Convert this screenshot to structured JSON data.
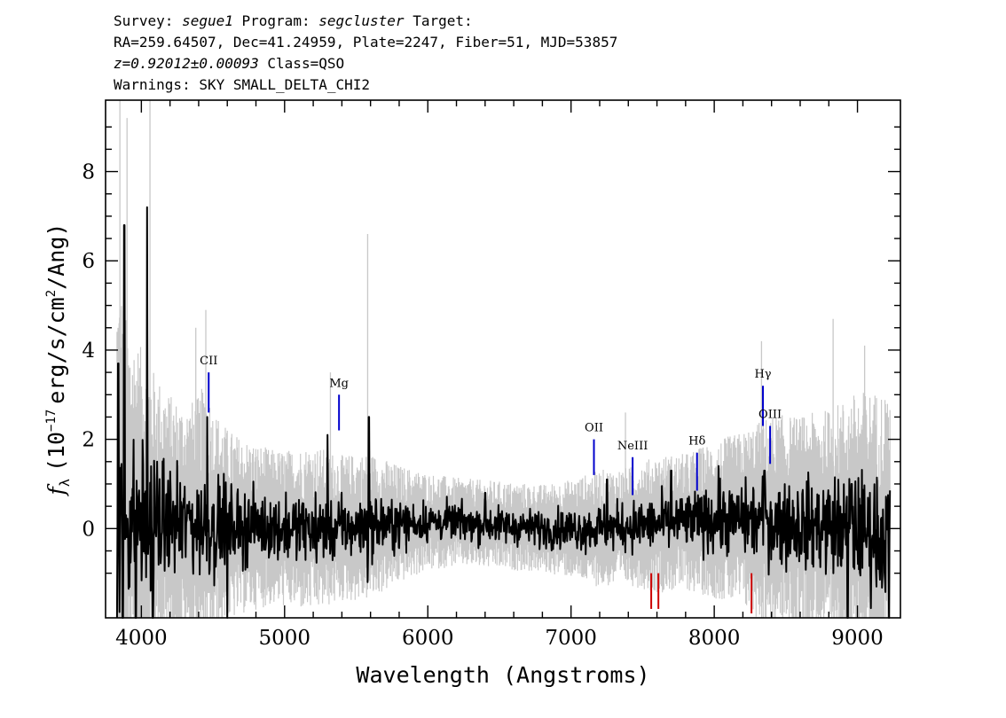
{
  "header": {
    "line1": {
      "survey_label": "Survey:",
      "survey": "segue1",
      "program_label": "Program:",
      "program": "segcluster",
      "target_label": "Target:"
    },
    "line2": "RA=259.64507, Dec=41.24959, Plate=2247, Fiber=51, MJD=53857",
    "line3": {
      "redshift": "z=0.92012±0.00093",
      "class": "Class=QSO"
    },
    "line4": "Warnings: SKY SMALL_DELTA_CHI2"
  },
  "chart_data": {
    "type": "line",
    "xlabel": "Wavelength (Angstroms)",
    "ylabel": {
      "f": "f",
      "sub": "λ",
      "pre": "(10",
      "exp1": "−17",
      "mid": "erg/s/cm",
      "exp2": "2",
      "post": "/Ang)"
    },
    "xlim": [
      3750,
      9300
    ],
    "ylim": [
      -2,
      9.6
    ],
    "x_ticks": [
      4000,
      5000,
      6000,
      7000,
      8000,
      9000
    ],
    "y_ticks": [
      0,
      2,
      4,
      6,
      8
    ],
    "grid": false,
    "legend": "none",
    "series": [
      {
        "role": "error",
        "color": "#c8c8c8",
        "x": [
          3850,
          3900,
          4000,
          4100,
          4200,
          4300,
          4400,
          4450,
          4500,
          4600,
          4700,
          4800,
          4900,
          5000,
          5200,
          5400,
          5600,
          5800,
          6000,
          6200,
          6400,
          6600,
          6800,
          7000,
          7200,
          7400,
          7600,
          7800,
          8000,
          8200,
          8400,
          8600,
          8800,
          9000,
          9200
        ],
        "values": [
          5.0,
          4.0,
          3.5,
          3.0,
          2.6,
          2.4,
          2.6,
          3.0,
          2.4,
          2.0,
          1.8,
          1.7,
          1.6,
          1.6,
          1.7,
          1.5,
          1.5,
          1.2,
          1.0,
          0.9,
          0.9,
          0.9,
          0.9,
          1.0,
          1.2,
          1.2,
          1.4,
          1.4,
          1.6,
          1.8,
          2.2,
          2.2,
          2.4,
          2.8,
          3.0
        ],
        "spikes": [
          {
            "x": 3850,
            "y": 9.6
          },
          {
            "x": 3900,
            "y": 9.2
          },
          {
            "x": 4060,
            "y": 9.6
          },
          {
            "x": 4380,
            "y": 4.5
          },
          {
            "x": 4450,
            "y": 4.9
          },
          {
            "x": 5320,
            "y": 3.5
          },
          {
            "x": 5580,
            "y": 6.6
          },
          {
            "x": 7380,
            "y": 2.6
          },
          {
            "x": 8330,
            "y": 4.2
          },
          {
            "x": 8830,
            "y": 4.7
          },
          {
            "x": 9050,
            "y": 4.1
          }
        ]
      },
      {
        "role": "flux",
        "color": "#000000",
        "x": [
          3800,
          4000,
          4200,
          4400,
          4600,
          4800,
          5000,
          5200,
          5400,
          5600,
          5800,
          6000,
          6200,
          6400,
          6600,
          6800,
          7000,
          7200,
          7400,
          7600,
          7800,
          8000,
          8200,
          8400,
          8600,
          8800,
          9000,
          9200
        ],
        "values": [
          0.2,
          0.2,
          0.15,
          0.1,
          0.05,
          0.05,
          0.0,
          0.0,
          0.0,
          0.05,
          0.1,
          0.15,
          0.15,
          0.1,
          0.05,
          0.0,
          0.0,
          0.0,
          0.05,
          0.1,
          0.15,
          0.2,
          0.2,
          0.15,
          0.1,
          0.05,
          0.0,
          -0.2
        ],
        "peaks": [
          {
            "x": 3840,
            "y": 3.7
          },
          {
            "x": 3880,
            "y": 6.8
          },
          {
            "x": 4040,
            "y": 7.2
          },
          {
            "x": 4460,
            "y": 2.5
          },
          {
            "x": 5300,
            "y": 2.1
          },
          {
            "x": 5590,
            "y": 2.5
          },
          {
            "x": 6400,
            "y": 0.8
          },
          {
            "x": 7250,
            "y": 1.1
          },
          {
            "x": 7700,
            "y": 1.3
          },
          {
            "x": 8030,
            "y": 1.4
          },
          {
            "x": 8350,
            "y": 1.3
          },
          {
            "x": 8960,
            "y": 1.0
          }
        ],
        "dips": [
          {
            "x": 3830,
            "y": -2.0
          },
          {
            "x": 3870,
            "y": -2.0
          },
          {
            "x": 3960,
            "y": -2.0
          },
          {
            "x": 4080,
            "y": -2.0
          },
          {
            "x": 4600,
            "y": -2.0
          },
          {
            "x": 5580,
            "y": -1.2
          },
          {
            "x": 8930,
            "y": -2.0
          },
          {
            "x": 9220,
            "y": -2.0
          }
        ]
      }
    ],
    "emission_lines": [
      {
        "label": "CII",
        "x": 4470,
        "y_bottom": 2.6,
        "y_top": 3.5,
        "color": "#0000cc"
      },
      {
        "label": "Mg",
        "x": 5380,
        "y_bottom": 2.2,
        "y_top": 3.0,
        "color": "#0000cc"
      },
      {
        "label": "OII",
        "x": 7160,
        "y_bottom": 1.2,
        "y_top": 2.0,
        "color": "#0000cc"
      },
      {
        "label": "NeIII",
        "x": 7430,
        "y_bottom": 0.75,
        "y_top": 1.6,
        "color": "#0000cc"
      },
      {
        "label": "Hδ",
        "x": 7880,
        "y_bottom": 0.85,
        "y_top": 1.7,
        "color": "#0000cc"
      },
      {
        "label": "Hγ",
        "x": 8340,
        "y_bottom": 2.3,
        "y_top": 3.2,
        "color": "#0000cc"
      },
      {
        "label": "OIII",
        "x": 8390,
        "y_bottom": 1.45,
        "y_top": 2.3,
        "color": "#0000cc"
      }
    ],
    "absorption_lines": [
      {
        "x": 7560,
        "y_bottom": -1.8,
        "y_top": -1.0,
        "color": "#cc0000"
      },
      {
        "x": 7610,
        "y_bottom": -1.8,
        "y_top": -1.0,
        "color": "#cc0000"
      },
      {
        "x": 8260,
        "y_bottom": -1.9,
        "y_top": -1.0,
        "color": "#cc0000"
      }
    ]
  }
}
